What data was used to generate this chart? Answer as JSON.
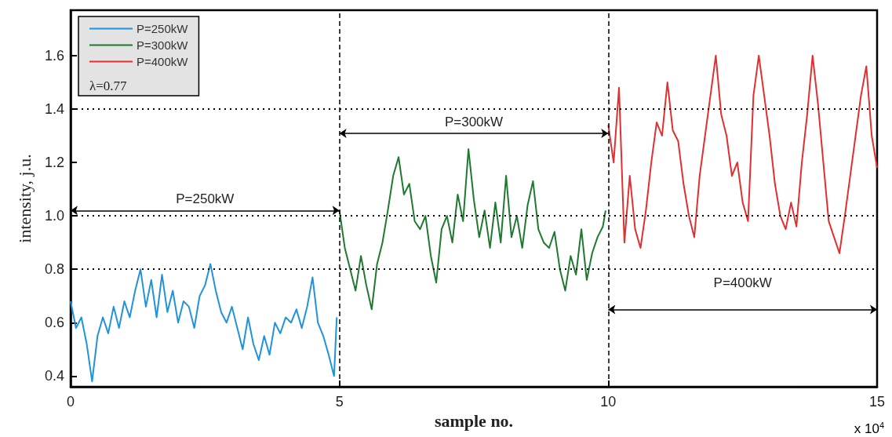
{
  "chart_data": {
    "type": "line",
    "xlabel": "sample no.",
    "ylabel": "intensity, j.u.",
    "xlim": [
      0,
      15
    ],
    "xticks": [
      0,
      5,
      10,
      15
    ],
    "ylim": [
      0.36,
      1.77
    ],
    "yticks": [
      0.4,
      0.6,
      0.8,
      {
        "value": 1,
        "label": "1.0"
      },
      1.2,
      1.4,
      1.6
    ],
    "legend": "top left",
    "grid": false,
    "marker": "none",
    "line_style": "solid",
    "series": [
      {
        "name": "P=250kW",
        "color": "#1f93dc",
        "x": [
          0,
          0.1,
          0.2,
          0.3,
          0.4,
          0.5,
          0.6,
          0.7,
          0.8,
          0.9,
          1.0,
          1.1,
          1.2,
          1.3,
          1.4,
          1.5,
          1.6,
          1.7,
          1.8,
          1.9,
          2.0,
          2.1,
          2.2,
          2.3,
          2.4,
          2.5,
          2.6,
          2.7,
          2.8,
          2.9,
          3.0,
          3.1,
          3.2,
          3.3,
          3.4,
          3.5,
          3.6,
          3.7,
          3.8,
          3.9,
          4.0,
          4.1,
          4.2,
          4.3,
          4.4,
          4.5,
          4.6,
          4.7,
          4.8,
          4.9,
          4.95
        ],
        "values": [
          0.68,
          0.58,
          0.62,
          0.52,
          0.38,
          0.55,
          0.62,
          0.56,
          0.66,
          0.58,
          0.68,
          0.62,
          0.72,
          0.8,
          0.66,
          0.76,
          0.62,
          0.78,
          0.64,
          0.72,
          0.6,
          0.68,
          0.66,
          0.58,
          0.7,
          0.74,
          0.82,
          0.72,
          0.64,
          0.6,
          0.66,
          0.58,
          0.5,
          0.62,
          0.52,
          0.46,
          0.55,
          0.48,
          0.6,
          0.56,
          0.62,
          0.6,
          0.65,
          0.58,
          0.66,
          0.77,
          0.6,
          0.55,
          0.48,
          0.4,
          0.62
        ]
      },
      {
        "name": "P=300kW",
        "color": "#1e7a2e",
        "x": [
          5.0,
          5.1,
          5.2,
          5.3,
          5.4,
          5.5,
          5.6,
          5.7,
          5.8,
          5.9,
          6.0,
          6.1,
          6.2,
          6.3,
          6.4,
          6.5,
          6.6,
          6.7,
          6.8,
          6.9,
          7.0,
          7.1,
          7.2,
          7.3,
          7.4,
          7.5,
          7.6,
          7.7,
          7.8,
          7.9,
          8.0,
          8.1,
          8.2,
          8.3,
          8.4,
          8.5,
          8.6,
          8.7,
          8.8,
          8.9,
          9.0,
          9.1,
          9.2,
          9.3,
          9.4,
          9.5,
          9.6,
          9.7,
          9.8,
          9.9,
          9.95
        ],
        "values": [
          1.02,
          0.88,
          0.8,
          0.72,
          0.85,
          0.74,
          0.65,
          0.82,
          0.9,
          1.02,
          1.15,
          1.22,
          1.08,
          1.12,
          0.98,
          0.95,
          1.0,
          0.85,
          0.75,
          0.95,
          1.0,
          0.9,
          1.08,
          0.98,
          1.25,
          1.06,
          0.92,
          1.02,
          0.88,
          1.05,
          0.9,
          1.15,
          0.92,
          1.0,
          0.88,
          1.04,
          1.13,
          0.95,
          0.9,
          0.88,
          0.94,
          0.8,
          0.72,
          0.85,
          0.78,
          0.95,
          0.76,
          0.86,
          0.92,
          0.96,
          1.02
        ]
      },
      {
        "name": "P=400kW",
        "color": "#e03030",
        "x": [
          10.0,
          10.1,
          10.2,
          10.3,
          10.4,
          10.5,
          10.6,
          10.7,
          10.8,
          10.9,
          11.0,
          11.1,
          11.2,
          11.3,
          11.4,
          11.5,
          11.6,
          11.7,
          11.8,
          11.9,
          12.0,
          12.1,
          12.2,
          12.3,
          12.4,
          12.5,
          12.6,
          12.7,
          12.8,
          12.9,
          13.0,
          13.1,
          13.2,
          13.3,
          13.4,
          13.5,
          13.6,
          13.7,
          13.8,
          13.9,
          14.0,
          14.1,
          14.2,
          14.3,
          14.4,
          14.5,
          14.6,
          14.7,
          14.8,
          14.9,
          15.0
        ],
        "values": [
          1.34,
          1.2,
          1.48,
          0.9,
          1.15,
          0.95,
          0.88,
          1.02,
          1.2,
          1.35,
          1.3,
          1.5,
          1.32,
          1.28,
          1.12,
          1.0,
          0.92,
          1.15,
          1.3,
          1.45,
          1.6,
          1.38,
          1.3,
          1.15,
          1.2,
          1.05,
          0.98,
          1.45,
          1.6,
          1.45,
          1.3,
          1.12,
          1.0,
          0.95,
          1.05,
          0.96,
          1.2,
          1.38,
          1.6,
          1.42,
          1.2,
          0.98,
          0.92,
          0.86,
          1.0,
          1.15,
          1.3,
          1.45,
          1.56,
          1.3,
          1.18
        ]
      }
    ],
    "ref_lines": [
      {
        "axis": "x",
        "value": 5,
        "line_style": "dashed",
        "color": "#000000"
      },
      {
        "axis": "x",
        "value": 10,
        "line_style": "dashed",
        "color": "#000000"
      },
      {
        "axis": "y",
        "value": 0.8,
        "line_style": "dotted",
        "color": "#000000"
      },
      {
        "axis": "y",
        "value": 1.0,
        "line_style": "dotted",
        "color": "#000000"
      },
      {
        "axis": "y",
        "value": 1.4,
        "line_style": "dotted",
        "color": "#000000"
      }
    ],
    "annotations": [
      "P=250kW",
      "P=300kW",
      "P=400kW",
      "λ=0.77",
      "x 10$^{4}$"
    ]
  }
}
